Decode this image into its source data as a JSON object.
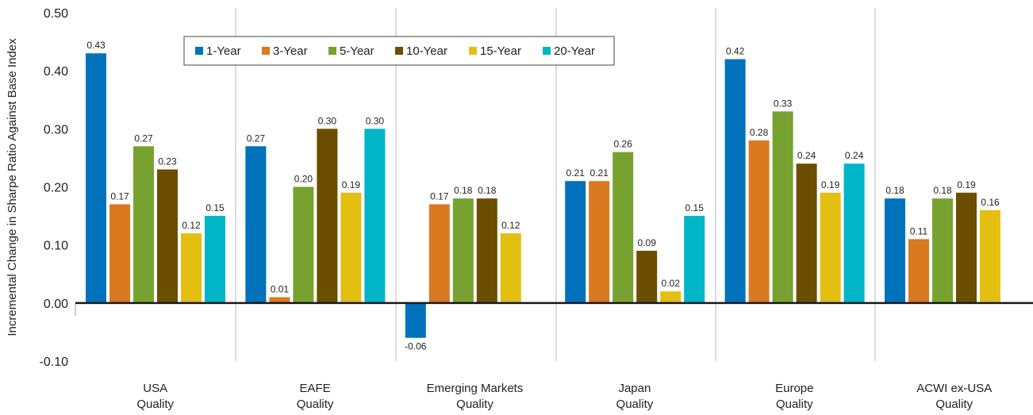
{
  "chart_data": {
    "type": "bar",
    "ylabel": "Incremental Change in Sharpe Ratio Against Base Index",
    "xlabel": "",
    "ylim": [
      -0.1,
      0.5
    ],
    "yticks": [
      -0.1,
      0.0,
      0.1,
      0.2,
      0.3,
      0.4,
      0.5
    ],
    "ytick_labels": [
      "-0.10",
      "0.00",
      "0.10",
      "0.20",
      "0.30",
      "0.40",
      "0.50"
    ],
    "grid": false,
    "legend_position": "top-left",
    "categories": [
      [
        "USA",
        "Quality"
      ],
      [
        "EAFE",
        "Quality"
      ],
      [
        "Emerging Markets",
        "Quality"
      ],
      [
        "Japan",
        "Quality"
      ],
      [
        "Europe",
        "Quality"
      ],
      [
        "ACWI ex-USA",
        "Quality"
      ]
    ],
    "series": [
      {
        "name": "1-Year",
        "color": "#0072bc",
        "values": [
          0.43,
          0.27,
          -0.06,
          0.21,
          0.42,
          0.18
        ]
      },
      {
        "name": "3-Year",
        "color": "#d97920",
        "values": [
          0.17,
          0.01,
          0.17,
          0.21,
          0.28,
          0.11
        ]
      },
      {
        "name": "5-Year",
        "color": "#78a22f",
        "values": [
          0.27,
          0.2,
          0.18,
          0.26,
          0.33,
          0.18
        ]
      },
      {
        "name": "10-Year",
        "color": "#6b4e00",
        "values": [
          0.23,
          0.3,
          0.18,
          0.09,
          0.24,
          0.19
        ]
      },
      {
        "name": "15-Year",
        "color": "#e3bf12",
        "values": [
          0.12,
          0.19,
          0.12,
          0.02,
          0.19,
          0.16
        ]
      },
      {
        "name": "20-Year",
        "color": "#00b5c8",
        "values": [
          0.15,
          0.3,
          null,
          0.15,
          0.24,
          null
        ]
      }
    ],
    "value_labels": [
      [
        "0.43",
        "0.27",
        "-0.06",
        "0.21",
        "0.42",
        "0.18"
      ],
      [
        "0.17",
        "0.01",
        "0.17",
        "0.21",
        "0.28",
        "0.11"
      ],
      [
        "0.27",
        "0.20",
        "0.18",
        "0.26",
        "0.33",
        "0.18"
      ],
      [
        "0.23",
        "0.30",
        "0.18",
        "0.09",
        "0.24",
        "0.19"
      ],
      [
        "0.12",
        "0.19",
        "0.12",
        "0.02",
        "0.19",
        "0.16"
      ],
      [
        "0.15",
        "0.30",
        null,
        "0.15",
        "0.24",
        null
      ]
    ]
  }
}
